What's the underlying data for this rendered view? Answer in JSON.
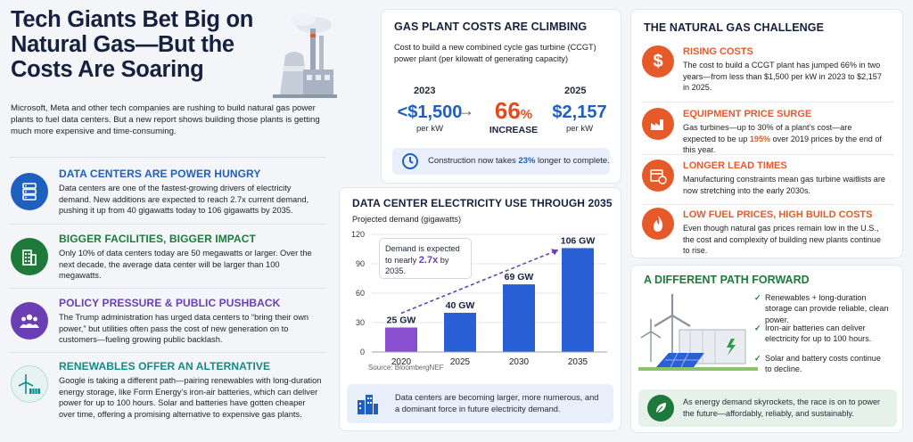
{
  "headline": "Tech Giants Bet Big on Natural Gas—But the Costs Are Soaring",
  "intro": "Microsoft, Meta and other tech companies are rushing to build natural gas power plants to fuel data centers. But a new report shows building those plants is getting much more expensive and time-consuming.",
  "left_sections": [
    {
      "title": "DATA CENTERS ARE POWER HUNGRY",
      "icon": "server-icon",
      "color": "#1f5fbf",
      "text": "Data centers are one of the fastest-growing drivers of electricity demand. New additions are expected to reach 2.7x current demand, pushing it up from 40 gigawatts today to 106 gigawatts by 2035."
    },
    {
      "title": "BIGGER FACILITIES, BIGGER IMPACT",
      "icon": "building-icon",
      "color": "#1e7a3a",
      "text": "Only 10% of data centers today are 50 megawatts or larger. Over the next decade, the average data center will be larger than 100 megawatts."
    },
    {
      "title": "POLICY PRESSURE & PUBLIC PUSHBACK",
      "icon": "people-icon",
      "color": "#6a3fb5",
      "text": "The Trump administration has urged data centers to “bring their own power,” but utilities often pass the cost of new generation on to customers—fueling growing public backlash."
    },
    {
      "title": "RENEWABLES OFFER AN ALTERNATIVE",
      "icon": "wind-solar-icon",
      "color": "#138a8a",
      "text": "Google is taking a different path—pairing renewables with long-duration energy storage, like Form Energy’s iron-air batteries, which can deliver power for up to 100 hours. Solar and batteries have gotten cheaper over time, offering a promising alternative to expensive gas plants."
    }
  ],
  "costs": {
    "title": "GAS PLANT COSTS ARE CLIMBING",
    "subtitle": "Cost to build a new combined cycle gas turbine (CCGT) power plant (per kilowatt of generating capacity)",
    "year1": "2023",
    "value1": "<$1,500",
    "unit1": "per kW",
    "pct": "66",
    "pct_sign": "%",
    "pct_label": "INCREASE",
    "year2": "2025",
    "value2": "$2,157",
    "unit2": "per kW",
    "note_pre": "Construction now takes ",
    "note_hl": "23%",
    "note_post": " longer to complete."
  },
  "chart_data": {
    "type": "bar",
    "title": "DATA CENTER ELECTRICITY USE THROUGH 2035",
    "ylabel": "Projected demand (gigawatts)",
    "categories": [
      "2020",
      "2025",
      "2030",
      "2035"
    ],
    "values": [
      25,
      40,
      69,
      106
    ],
    "data_labels": [
      "25 GW",
      "40 GW",
      "69 GW",
      "106 GW"
    ],
    "yticks": [
      "0",
      "30",
      "60",
      "90",
      "120"
    ],
    "ylim": [
      0,
      120
    ],
    "colors": [
      "#8a4fd1",
      "#2a5fd6",
      "#2a5fd6",
      "#2a5fd6"
    ],
    "annotation_pre": "Demand is expected to nearly ",
    "annotation_hl": "2.7x",
    "annotation_post": " by 2035.",
    "source": "Source: BloombergNEF"
  },
  "chart_footer": "Data centers are becoming larger, more numerous, and a dominant force in future electricity demand.",
  "challenge": {
    "title": "THE NATURAL GAS CHALLENGE",
    "items": [
      {
        "title": "RISING COSTS",
        "icon": "dollar-icon",
        "text": "The cost to build a CCGT plant has jumped 66% in two years—from less than $1,500 per kW in 2023 to $2,157 in 2025."
      },
      {
        "title": "EQUIPMENT PRICE SURGE",
        "icon": "factory-icon",
        "text_pre": "Gas turbines—up to 30% of a plant’s cost—are expected to be up ",
        "text_hl": "195%",
        "text_post": " over 2019 prices by the end of this year."
      },
      {
        "title": "LONGER LEAD TIMES",
        "icon": "calendar-clock-icon",
        "text": "Manufacturing constraints mean gas turbine waitlists are now stretching into the early 2030s."
      },
      {
        "title": "LOW FUEL PRICES, HIGH BUILD COSTS",
        "icon": "flame-icon",
        "text": "Even though natural gas prices remain low in the U.S., the cost and complexity of building new plants continue to rise."
      }
    ]
  },
  "path": {
    "title": "A DIFFERENT PATH FORWARD",
    "checks": [
      "Renewables + long-duration storage can provide reliable, clean power.",
      "Iron-air batteries can deliver electricity for up to 100 hours.",
      "Solar and battery costs continue to decline."
    ],
    "footer": "As energy demand skyrockets, the race is on to power the future—affordably, reliably, and sustainably."
  }
}
